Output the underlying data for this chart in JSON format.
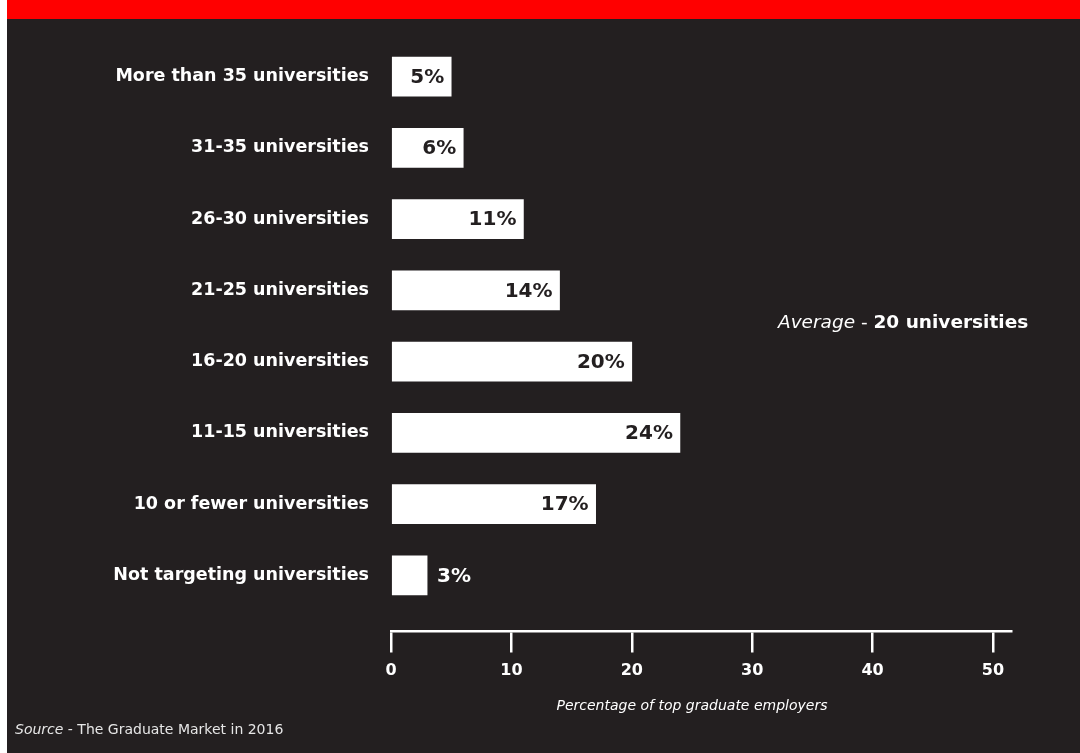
{
  "chart_data": {
    "type": "bar",
    "orientation": "horizontal",
    "categories": [
      "More than 35 universities",
      "31-35 universities",
      "26-30 universities",
      "21-25 universities",
      "16-20 universities",
      "11-15 universities",
      "10 or fewer universities",
      "Not targeting universities"
    ],
    "values": [
      5,
      6,
      11,
      14,
      20,
      24,
      17,
      3
    ],
    "color": "#ffffff",
    "value_labels": [
      "5%",
      "6%",
      "11%",
      "14%",
      "20%",
      "24%",
      "17%",
      "3%"
    ],
    "xlim": [
      0,
      51.5
    ],
    "xticks": [
      0,
      10,
      20,
      30,
      40,
      50
    ],
    "xlabel": "Percentage of top graduate employers",
    "annotations": [
      "Average - 20 universities",
      "Source - The Graduate Market in 2016"
    ]
  }
}
